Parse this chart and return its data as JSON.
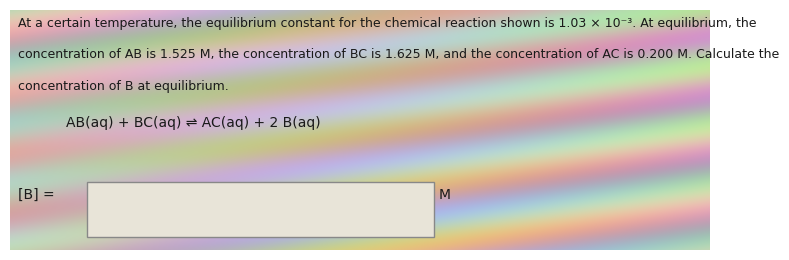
{
  "line1": "At a certain temperature, the equilibrium constant for the chemical reaction shown is 1.03 × 10⁻³. At equilibrium, the",
  "line2": "concentration of AB is 1.525 M, the concentration of BC is 1.625 M, and the concentration of AC is 0.200 M. Calculate the",
  "line3": "concentration of B at equilibrium.",
  "equation": "AB(aq) + BC(aq) ⇌ AC(aq) + 2 B(aq)",
  "label_B": "[B] =",
  "label_M": "M",
  "text_color": "#1a1a1a",
  "box_facecolor": "#e8e4d8",
  "box_edgecolor": "#888888",
  "font_size_text": 9.0,
  "font_size_eq": 10.0,
  "bg_base_r": 0.78,
  "bg_base_g": 0.74,
  "bg_base_b": 0.7,
  "wave_amplitude": 0.18,
  "wave_freq": 5.0
}
